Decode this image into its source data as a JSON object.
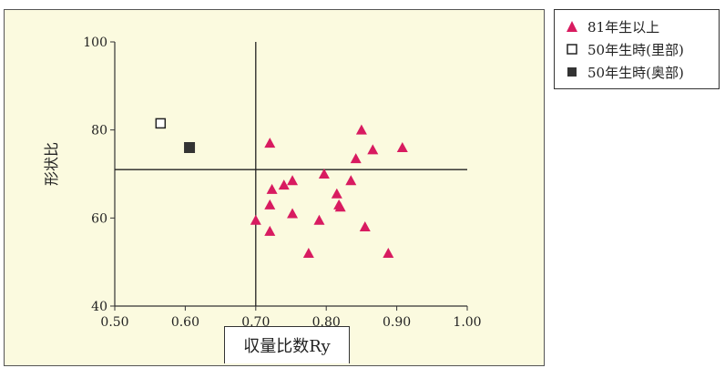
{
  "chart_data": {
    "type": "scatter",
    "xlabel": "収量比数Ry",
    "ylabel": "形状比",
    "xlim": [
      0.5,
      1.0
    ],
    "ylim": [
      40,
      100
    ],
    "xticks": [
      "0.50",
      "0.60",
      "0.70",
      "0.80",
      "0.90",
      "1.00"
    ],
    "yticks": [
      "40",
      "60",
      "80",
      "100"
    ],
    "reference_lines": {
      "x": 0.7,
      "y": 71
    },
    "legend_position": "outside-right-top",
    "series": [
      {
        "name": "81年生以上",
        "marker": "triangle",
        "color": "#d81b60",
        "points": [
          [
            0.7,
            59.5
          ],
          [
            0.72,
            57
          ],
          [
            0.72,
            63
          ],
          [
            0.72,
            77
          ],
          [
            0.723,
            66.5
          ],
          [
            0.74,
            67.5
          ],
          [
            0.752,
            68.5
          ],
          [
            0.752,
            61
          ],
          [
            0.775,
            52
          ],
          [
            0.79,
            59.5
          ],
          [
            0.797,
            70
          ],
          [
            0.815,
            65.5
          ],
          [
            0.818,
            63
          ],
          [
            0.82,
            62.5
          ],
          [
            0.835,
            68.5
          ],
          [
            0.842,
            73.5
          ],
          [
            0.85,
            80
          ],
          [
            0.855,
            58
          ],
          [
            0.866,
            75.5
          ],
          [
            0.888,
            52
          ],
          [
            0.908,
            76
          ]
        ]
      },
      {
        "name": "50年生時(里部)",
        "marker": "open-square",
        "color": "#222222",
        "points": [
          [
            0.565,
            81.5
          ]
        ]
      },
      {
        "name": "50年生時(奥部)",
        "marker": "filled-square",
        "color": "#333333",
        "points": [
          [
            0.606,
            76
          ]
        ]
      }
    ]
  }
}
